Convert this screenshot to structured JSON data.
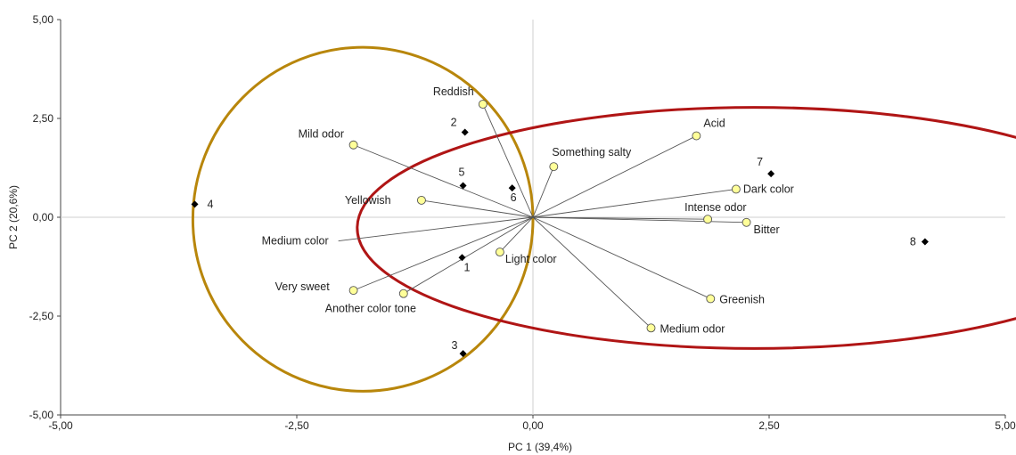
{
  "chart_data": {
    "type": "scatter",
    "title": "",
    "xlabel": "PC 1 (39,4%)",
    "ylabel": "PC 2 (20,6%)",
    "xlim": [
      -5,
      5
    ],
    "ylim": [
      -5,
      5
    ],
    "x_ticks": [
      -5,
      -2.5,
      0,
      2.5,
      5
    ],
    "x_tick_labels": [
      "-5,00",
      "-2,50",
      "0,00",
      "2,50",
      "5,00"
    ],
    "y_ticks": [
      5,
      2.5,
      0,
      -2.5,
      -5
    ],
    "y_tick_labels": [
      "5,00",
      "2,50",
      "0,00",
      "-2,50",
      "-5,00"
    ],
    "grid": false,
    "samples": [
      {
        "label": "1",
        "x": -0.75,
        "y": -1.02
      },
      {
        "label": "2",
        "x": -0.72,
        "y": 2.15
      },
      {
        "label": "3",
        "x": -0.74,
        "y": -3.45
      },
      {
        "label": "4",
        "x": -3.58,
        "y": 0.33
      },
      {
        "label": "5",
        "x": -0.74,
        "y": 0.8
      },
      {
        "label": "6",
        "x": -0.22,
        "y": 0.74
      },
      {
        "label": "7",
        "x": 2.52,
        "y": 1.1
      },
      {
        "label": "8",
        "x": 4.15,
        "y": -0.62
      }
    ],
    "variables": [
      {
        "label": "Reddish",
        "x": -0.53,
        "y": 2.86
      },
      {
        "label": "Mild odor",
        "x": -1.9,
        "y": 1.83
      },
      {
        "label": "Acid",
        "x": 1.73,
        "y": 2.06
      },
      {
        "label": "Something salty",
        "x": 0.22,
        "y": 1.28
      },
      {
        "label": "Yellowish",
        "x": -1.18,
        "y": 0.43
      },
      {
        "label": "Dark color",
        "x": 2.15,
        "y": 0.71
      },
      {
        "label": "Intense odor",
        "x": 1.85,
        "y": -0.05
      },
      {
        "label": "Bitter",
        "x": 2.26,
        "y": -0.13
      },
      {
        "label": "Medium color",
        "x": -2.06,
        "y": -0.6
      },
      {
        "label": "Light color",
        "x": -0.35,
        "y": -0.88
      },
      {
        "label": "Very sweet",
        "x": -1.9,
        "y": -1.85
      },
      {
        "label": "Another color tone",
        "x": -1.37,
        "y": -1.93
      },
      {
        "label": "Greenish",
        "x": 1.88,
        "y": -2.06
      },
      {
        "label": "Medium odor",
        "x": 1.25,
        "y": -2.8
      }
    ],
    "groups": [
      {
        "shape": "circle",
        "color": "#B8860B",
        "center": [
          -1.8,
          -0.05
        ],
        "rx": 1.8,
        "ry": 4.35
      },
      {
        "shape": "ellipse",
        "color": "#B01515",
        "center": [
          2.34,
          -0.27
        ],
        "rx": 4.2,
        "ry": 3.05
      }
    ],
    "colors": {
      "variable_fill": "#FFFF99",
      "sample_fill": "#000000",
      "loading_line": "#555555"
    }
  }
}
